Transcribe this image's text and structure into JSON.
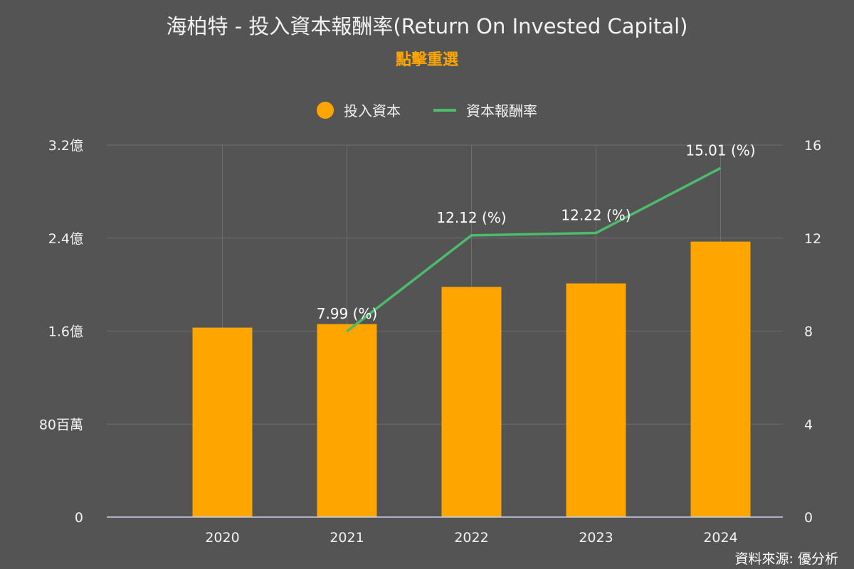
{
  "chart_data": {
    "type": "bar+line",
    "title": "海柏特 - 投入資本報酬率(Return On Invested Capital)",
    "subtitle": "點擊重選",
    "categories": [
      "2020",
      "2021",
      "2022",
      "2023",
      "2024"
    ],
    "series": [
      {
        "name": "投入資本",
        "type": "bar",
        "axis": "left",
        "values": [
          163000000,
          166000000,
          198000000,
          201000000,
          237000000
        ]
      },
      {
        "name": "資本報酬率",
        "type": "line",
        "axis": "right",
        "values": [
          null,
          7.99,
          12.12,
          12.22,
          15.01
        ],
        "labels": [
          "",
          "7.99 (%)",
          "12.12 (%)",
          "12.22 (%)",
          "15.01 (%)"
        ]
      }
    ],
    "y_left": {
      "range": [
        0,
        320000000
      ],
      "ticks": [
        0,
        80000000,
        160000000,
        240000000,
        320000000
      ],
      "tick_labels": [
        "0",
        "80百萬",
        "1.6億",
        "2.4億",
        "3.2億"
      ]
    },
    "y_right": {
      "range": [
        0,
        16
      ],
      "ticks": [
        0,
        4,
        8,
        12,
        16
      ],
      "tick_labels": [
        "0",
        "4",
        "8",
        "12",
        "16"
      ]
    },
    "grid": true,
    "legend_position": "top-center"
  },
  "colors": {
    "background": "#545454",
    "bar": "#ffa500",
    "line": "#4cbb6c",
    "grid": "#6e6e6e",
    "subtitle": "#ffa500"
  },
  "source": "資料來源: 優分析"
}
